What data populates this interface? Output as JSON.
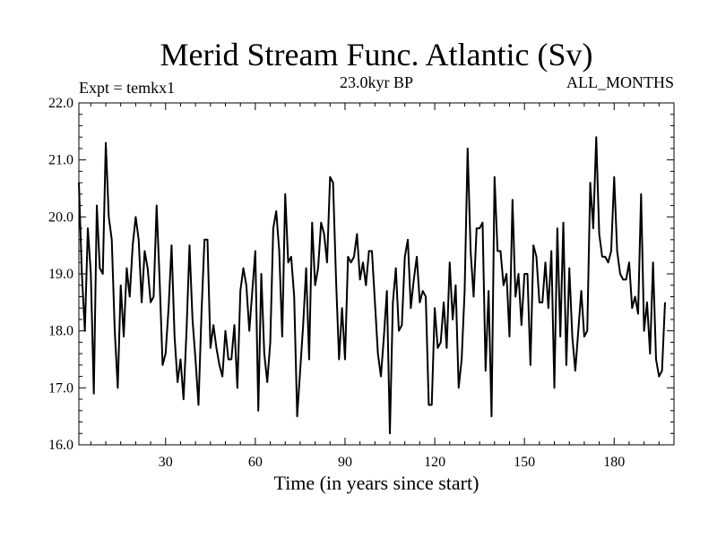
{
  "chart_data": {
    "type": "line",
    "title": "Merid Stream Func. Atlantic (Sv)",
    "subtitle_left": "Expt = temkx1",
    "subtitle_center": "23.0kyr BP",
    "subtitle_right": "ALL_MONTHS",
    "xlabel": "Time (in years since start)",
    "ylabel": "",
    "xlim": [
      1,
      200
    ],
    "ylim": [
      16.0,
      22.0
    ],
    "x_ticks": [
      30,
      60,
      90,
      120,
      150,
      180
    ],
    "x_tick_labels": [
      "30",
      "60",
      "90",
      "120",
      "150",
      "180"
    ],
    "y_ticks": [
      16.0,
      17.0,
      18.0,
      19.0,
      20.0,
      21.0,
      22.0
    ],
    "y_tick_labels": [
      "16.0",
      "17.0",
      "18.0",
      "19.0",
      "20.0",
      "21.0",
      "22.0"
    ],
    "grid": false,
    "line_color": "#000000",
    "series": [
      {
        "name": "Merid Stream Func. Atlantic",
        "x_start": 1,
        "x_step": 1,
        "values": [
          20.6,
          19.0,
          18.0,
          19.8,
          19.0,
          16.9,
          20.2,
          19.1,
          19.0,
          21.3,
          20.0,
          19.6,
          18.0,
          17.0,
          18.8,
          17.9,
          19.1,
          18.6,
          19.5,
          20.0,
          19.6,
          18.5,
          19.4,
          19.1,
          18.5,
          18.6,
          20.2,
          18.9,
          17.4,
          17.6,
          18.4,
          19.5,
          17.9,
          17.1,
          17.5,
          16.8,
          18.0,
          19.5,
          18.2,
          17.5,
          16.7,
          18.3,
          19.6,
          19.6,
          17.7,
          18.1,
          17.7,
          17.4,
          17.2,
          18.0,
          17.5,
          17.5,
          18.1,
          17.0,
          18.7,
          19.1,
          18.8,
          18.0,
          18.7,
          19.4,
          16.6,
          19.0,
          17.6,
          17.1,
          17.8,
          19.8,
          20.1,
          19.4,
          17.9,
          20.4,
          19.2,
          19.3,
          18.6,
          16.5,
          17.3,
          18.1,
          19.1,
          17.5,
          19.9,
          18.8,
          19.1,
          19.9,
          19.7,
          19.2,
          20.7,
          20.6,
          18.9,
          17.5,
          18.4,
          17.5,
          19.3,
          19.2,
          19.3,
          19.7,
          18.9,
          19.2,
          18.8,
          19.4,
          19.4,
          18.5,
          17.6,
          17.2,
          17.9,
          18.7,
          16.2,
          18.5,
          19.1,
          18.0,
          18.1,
          19.3,
          19.6,
          18.4,
          18.9,
          19.3,
          18.5,
          18.7,
          18.6,
          16.7,
          16.7,
          18.4,
          17.7,
          17.8,
          18.5,
          17.7,
          19.2,
          18.2,
          18.8,
          17.0,
          17.5,
          18.7,
          21.2,
          19.4,
          18.6,
          19.8,
          19.8,
          19.9,
          17.3,
          18.7,
          16.5,
          20.7,
          19.4,
          19.4,
          18.8,
          19.0,
          17.9,
          20.3,
          18.6,
          19.0,
          18.1,
          19.0,
          19.0,
          17.4,
          19.5,
          19.3,
          18.5,
          18.5,
          19.2,
          18.4,
          19.4,
          17.0,
          19.8,
          17.9,
          19.9,
          17.4,
          19.1,
          17.9,
          17.3,
          18.0,
          18.7,
          17.9,
          18.0,
          20.6,
          19.8,
          21.4,
          19.7,
          19.3,
          19.3,
          19.2,
          19.4,
          20.7,
          19.4,
          19.0,
          18.9,
          18.9,
          19.2,
          18.4,
          18.6,
          18.3,
          20.4,
          18.0,
          18.5,
          17.6,
          19.2,
          17.5,
          17.2,
          17.3,
          18.5
        ]
      }
    ]
  }
}
